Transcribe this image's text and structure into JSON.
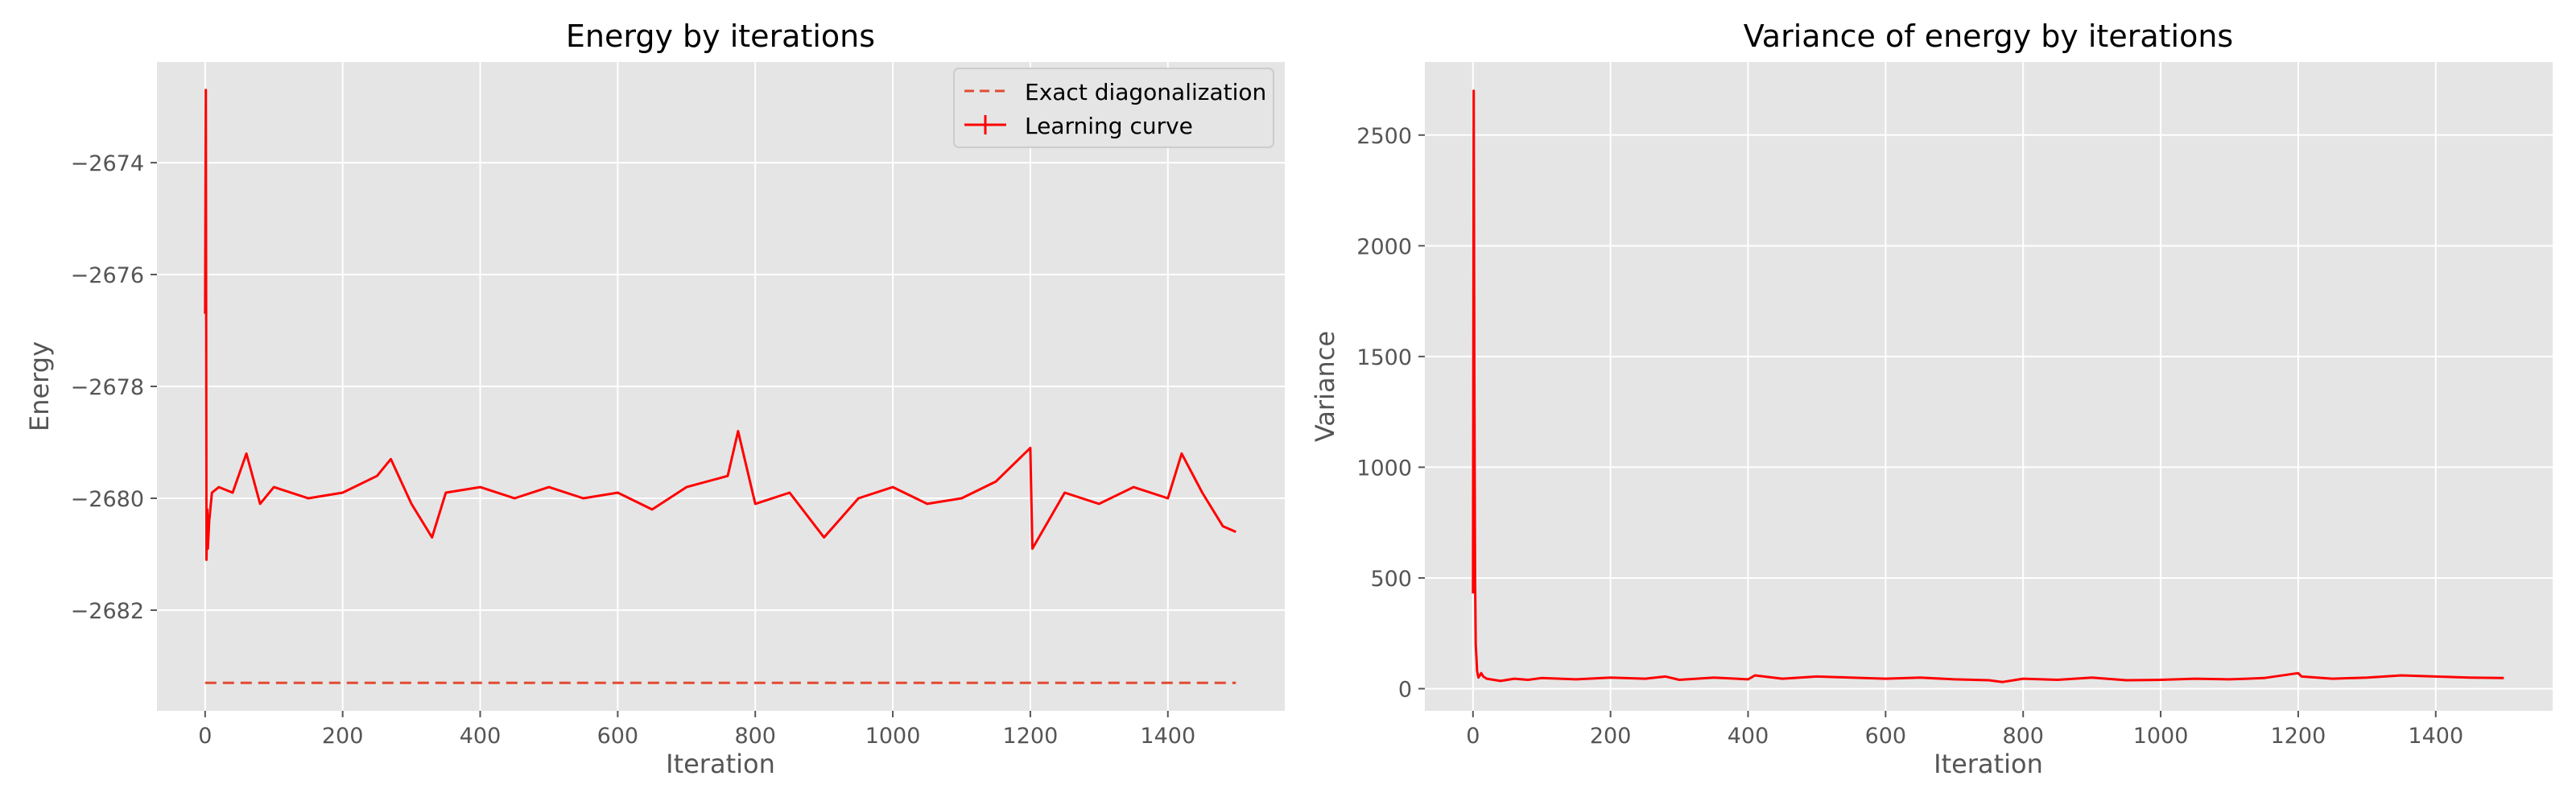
{
  "chart_data": [
    {
      "type": "line",
      "title": "Energy by iterations",
      "xlabel": "Iteration",
      "ylabel": "Energy",
      "xlim": [
        -70,
        1570
      ],
      "ylim": [
        -2683.8,
        -2672.2
      ],
      "xticks": [
        0,
        200,
        400,
        600,
        800,
        1000,
        1200,
        1400
      ],
      "xtick_labels": [
        "0",
        "200",
        "400",
        "600",
        "800",
        "1000",
        "1200",
        "1400"
      ],
      "yticks": [
        -2682,
        -2680,
        -2678,
        -2676,
        -2674
      ],
      "ytick_labels": [
        "−2682",
        "−2680",
        "−2678",
        "−2676",
        "−2674"
      ],
      "grid": true,
      "legend_position": "top-right",
      "series": [
        {
          "name": "Exact diagonalization",
          "style": "dashed",
          "color": "#e24a33",
          "x": [
            0,
            1499
          ],
          "y": [
            -2683.3,
            -2683.3
          ]
        },
        {
          "name": "Learning curve",
          "style": "solid-with-errorbars",
          "color": "#ff0000",
          "x": [
            0,
            1,
            2,
            3,
            4,
            6,
            10,
            20,
            40,
            60,
            80,
            100,
            150,
            200,
            250,
            270,
            300,
            330,
            350,
            400,
            450,
            500,
            550,
            600,
            650,
            700,
            760,
            775,
            800,
            850,
            900,
            950,
            1000,
            1050,
            1100,
            1150,
            1200,
            1203,
            1250,
            1300,
            1350,
            1400,
            1420,
            1450,
            1480,
            1499
          ],
          "y": [
            -2676.7,
            -2672.7,
            -2681.1,
            -2680.2,
            -2680.9,
            -2680.4,
            -2679.9,
            -2679.8,
            -2679.9,
            -2679.2,
            -2680.1,
            -2679.8,
            -2680.0,
            -2679.9,
            -2679.6,
            -2679.3,
            -2680.1,
            -2680.7,
            -2679.9,
            -2679.8,
            -2680.0,
            -2679.8,
            -2680.0,
            -2679.9,
            -2680.2,
            -2679.8,
            -2679.6,
            -2678.8,
            -2680.1,
            -2679.9,
            -2680.7,
            -2680.0,
            -2679.8,
            -2680.1,
            -2680.0,
            -2679.7,
            -2679.1,
            -2680.9,
            -2679.9,
            -2680.1,
            -2679.8,
            -2680.0,
            -2679.2,
            -2679.9,
            -2680.5,
            -2680.6
          ]
        }
      ]
    },
    {
      "type": "line",
      "title": "Variance of energy by iterations",
      "xlabel": "Iteration",
      "ylabel": "Variance",
      "xlim": [
        -70,
        1570
      ],
      "ylim": [
        -100,
        2830
      ],
      "xticks": [
        0,
        200,
        400,
        600,
        800,
        1000,
        1200,
        1400
      ],
      "xtick_labels": [
        "0",
        "200",
        "400",
        "600",
        "800",
        "1000",
        "1200",
        "1400"
      ],
      "yticks": [
        0,
        500,
        1000,
        1500,
        2000,
        2500
      ],
      "ytick_labels": [
        "0",
        "500",
        "1000",
        "1500",
        "2000",
        "2500"
      ],
      "grid": true,
      "series": [
        {
          "color": "#ff0000",
          "x": [
            0,
            1,
            2,
            3,
            4,
            5,
            6,
            8,
            10,
            12,
            15,
            20,
            30,
            40,
            60,
            80,
            100,
            150,
            200,
            250,
            280,
            300,
            350,
            400,
            410,
            450,
            500,
            550,
            600,
            650,
            700,
            750,
            770,
            800,
            850,
            900,
            950,
            1000,
            1050,
            1100,
            1150,
            1200,
            1205,
            1250,
            1300,
            1350,
            1400,
            1450,
            1499
          ],
          "y": [
            430,
            2700,
            1400,
            500,
            200,
            140,
            80,
            50,
            60,
            70,
            55,
            45,
            40,
            35,
            45,
            40,
            48,
            42,
            50,
            45,
            55,
            40,
            50,
            42,
            60,
            45,
            55,
            50,
            45,
            50,
            42,
            38,
            30,
            45,
            40,
            50,
            38,
            40,
            45,
            42,
            48,
            70,
            55,
            45,
            50,
            60,
            55,
            50,
            48
          ]
        }
      ]
    }
  ],
  "legend": {
    "entries": [
      "Exact diagonalization",
      "Learning curve"
    ]
  },
  "colors": {
    "axes_bg": "#e5e5e5",
    "grid": "#ffffff",
    "tick_text": "#555555",
    "label_text": "#555555",
    "title_text": "#000000"
  }
}
